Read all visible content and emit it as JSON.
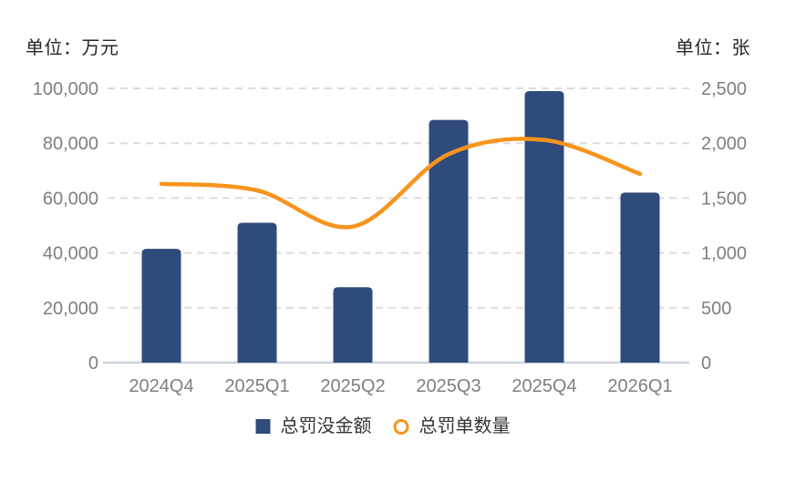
{
  "header": {
    "left_unit": "单位：万元",
    "right_unit": "单位：张"
  },
  "legend": [
    {
      "label": "总罚没金额",
      "marker": "square",
      "color": "#2F4B7C"
    },
    {
      "label": "总罚单数量",
      "marker": "ring",
      "color": "#F7941D"
    }
  ],
  "chart_data": {
    "type": "bar+line dual-axis",
    "categories": [
      "2024Q4",
      "2025Q1",
      "2025Q2",
      "2025Q3",
      "2025Q4",
      "2026Q1"
    ],
    "series": [
      {
        "name": "总罚没金额",
        "type": "bar",
        "axis": "left",
        "color": "#2F4B7C",
        "values": [
          41500,
          51000,
          27500,
          88500,
          99000,
          62000
        ]
      },
      {
        "name": "总罚单数量",
        "type": "line",
        "axis": "right",
        "color": "#F7941D",
        "values": [
          1630,
          1570,
          1240,
          1900,
          2030,
          1720
        ]
      }
    ],
    "left_axis": {
      "title": "单位：万元",
      "min": 0,
      "max": 100000,
      "step": 20000,
      "ticks": [
        "0",
        "20,000",
        "40,000",
        "60,000",
        "80,000",
        "100,000"
      ]
    },
    "right_axis": {
      "title": "单位：张",
      "min": 0,
      "max": 2500,
      "step": 500,
      "ticks": [
        "0",
        "500",
        "1,000",
        "1,500",
        "2,000",
        "2,500"
      ]
    },
    "grid": "horizontal dashed",
    "legend_position": "bottom",
    "colors": {
      "bar": "#2F4B7C",
      "line": "#F7941D",
      "grid": "#DCDCDC",
      "axis_line": "#CBD4E0",
      "tick_text": "#7F7F7F",
      "unit_text": "#262626",
      "legend_text": "#333333",
      "background": "#FFFFFF"
    }
  }
}
